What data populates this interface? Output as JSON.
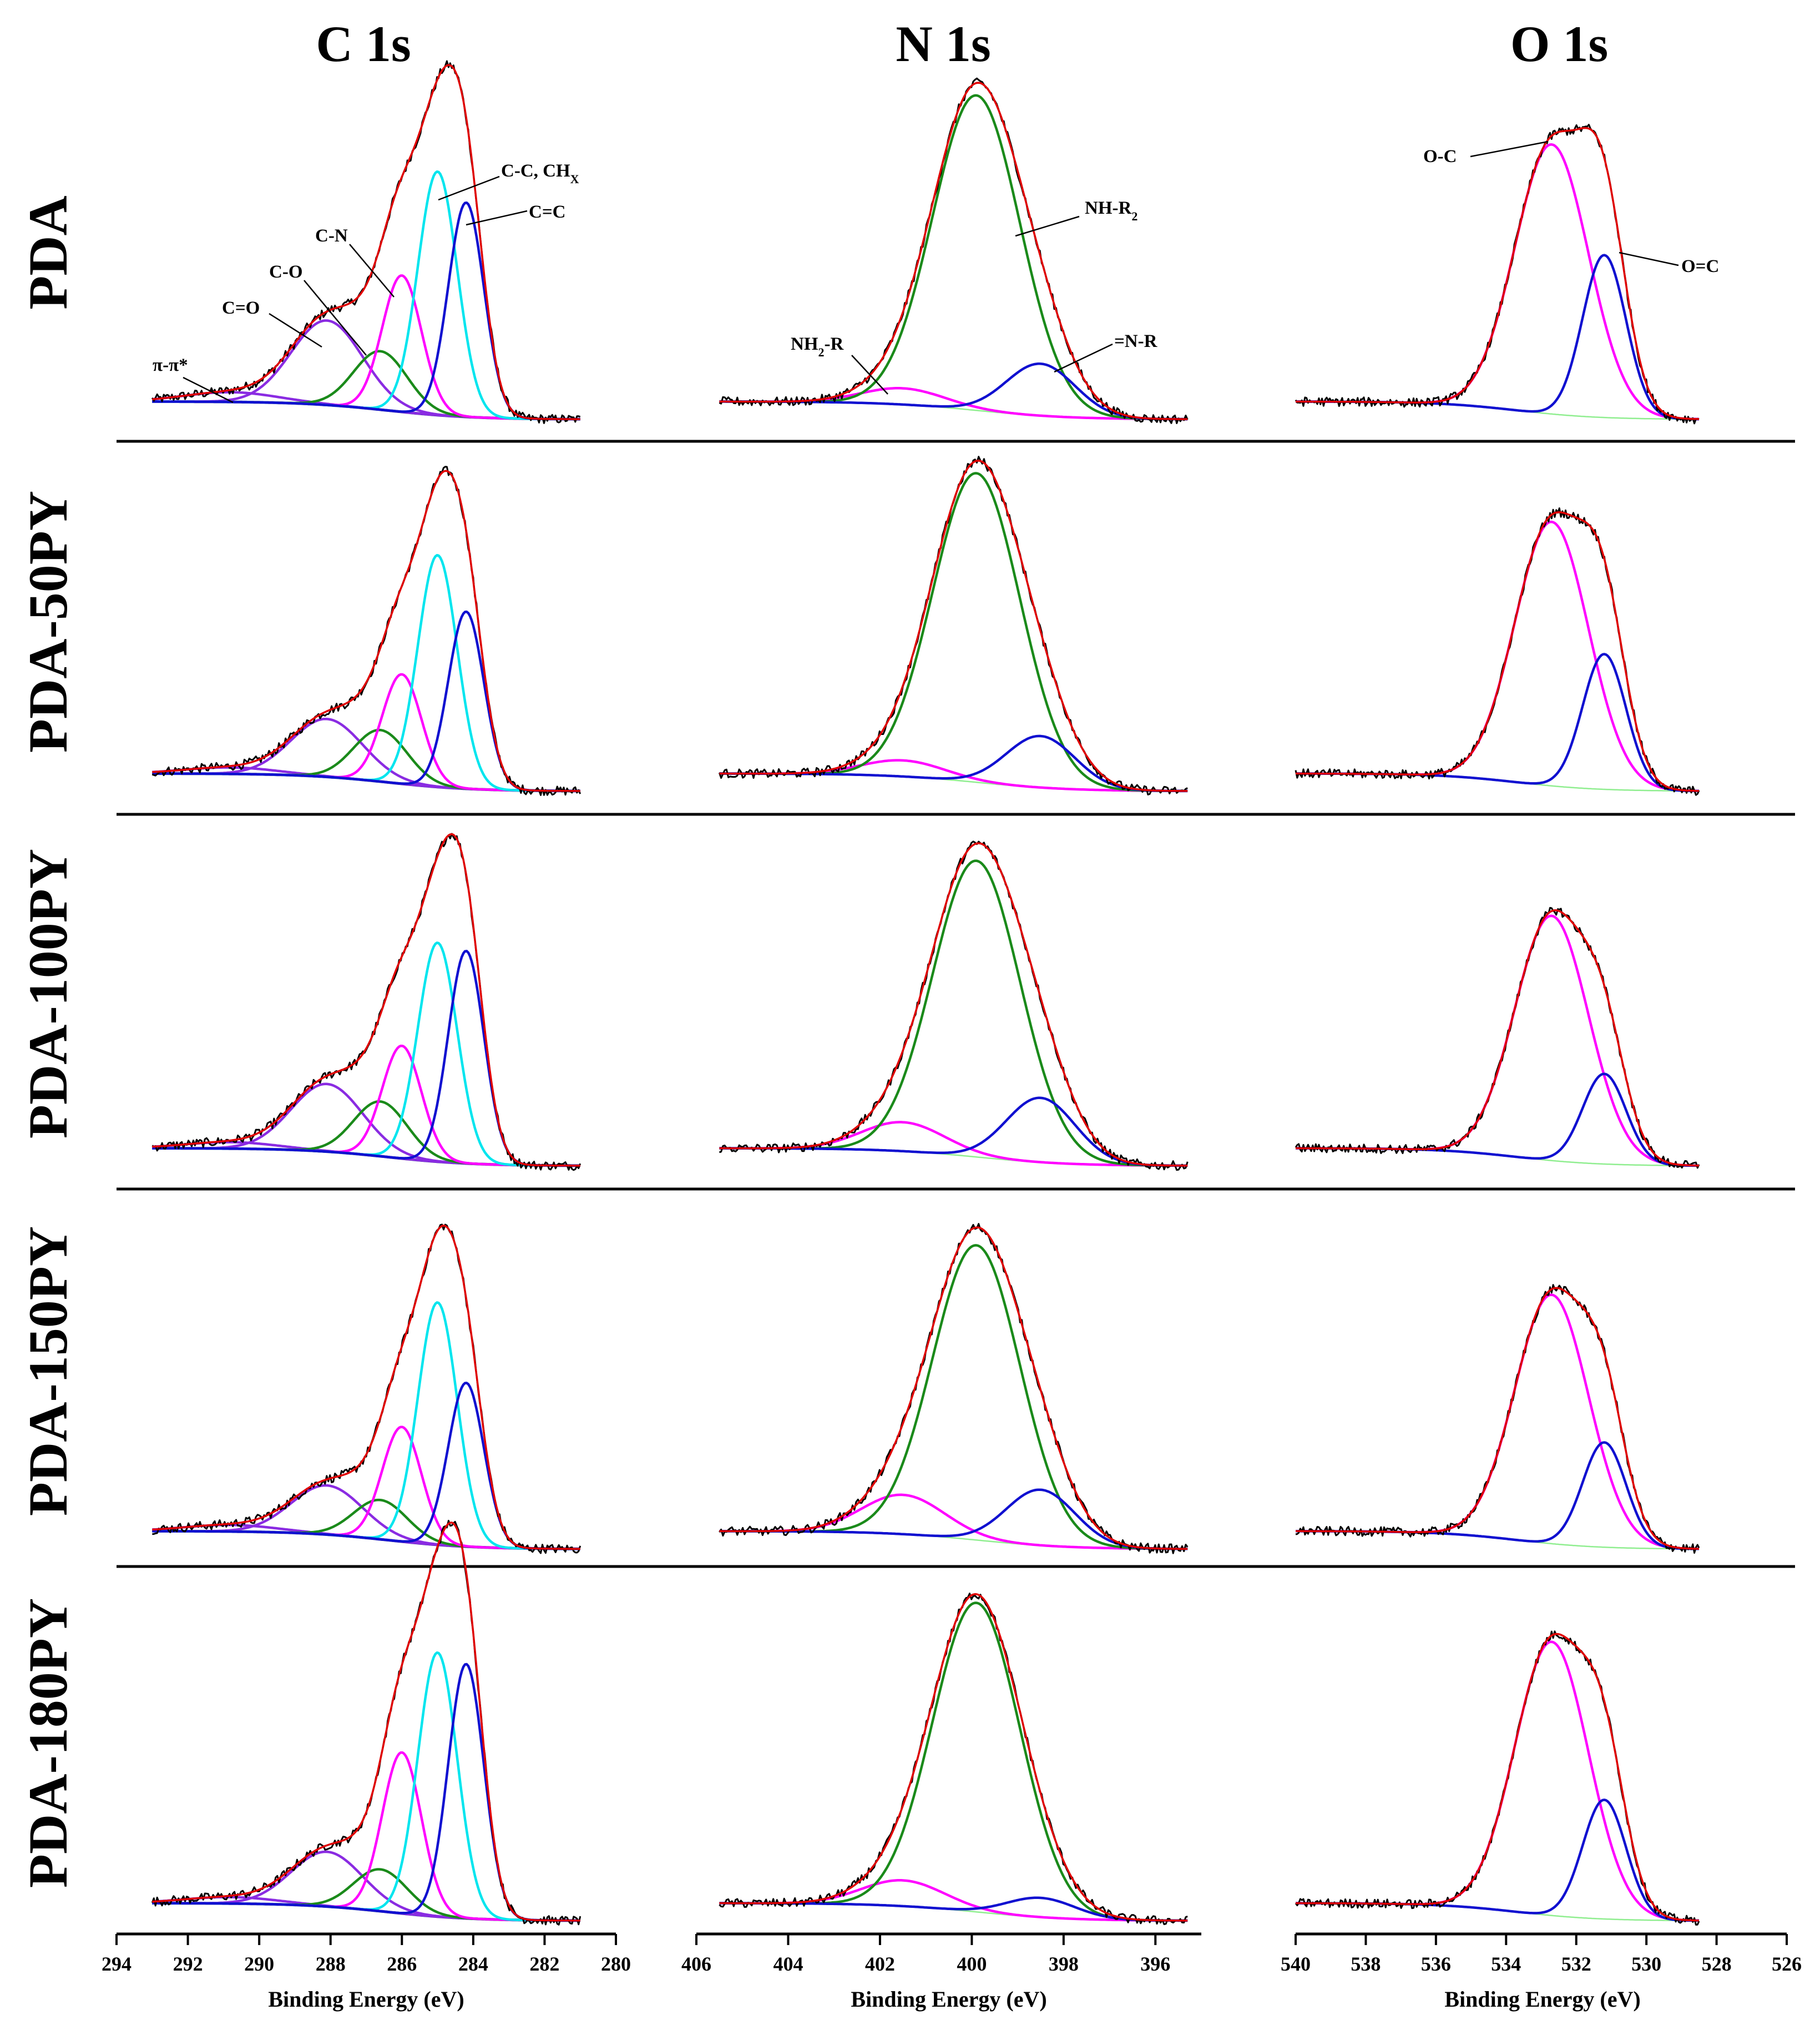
{
  "colors": {
    "raw": "#000000",
    "envelope": "#e00000",
    "background": "#1a237e",
    "magenta": "#ff00ff",
    "green": "#1a8a1a",
    "blue": "#1010d0",
    "cyan": "#00e5ee",
    "purple": "#8a2be2",
    "lightgreen": "#90ee90"
  },
  "chart_data": {
    "type": "line",
    "title_columns": [
      "C 1s",
      "N 1s",
      "O 1s"
    ],
    "row_labels": [
      "PDA",
      "PDA-50PY",
      "PDA-100PY",
      "PDA-150PY",
      "PDA-180PY"
    ],
    "xlabel": "Binding Energy (eV)",
    "panels": [
      {
        "name": "C 1s",
        "xlim": [
          294,
          280
        ],
        "xticks": [
          "294",
          "292",
          "290",
          "288",
          "286",
          "284",
          "282",
          "280"
        ],
        "xtick_values": [
          294,
          292,
          290,
          288,
          286,
          284,
          282,
          280
        ],
        "data_range": [
          293.0,
          281.0
        ],
        "components": [
          {
            "name": "π-π*",
            "center": 290.8,
            "color": "purple"
          },
          {
            "name": "C=O",
            "center": 288.1,
            "color": "purple"
          },
          {
            "name": "C-O",
            "center": 286.6,
            "color": "green"
          },
          {
            "name": "C-N",
            "center": 286.0,
            "color": "magenta"
          },
          {
            "name": "C-C, CHX",
            "center": 285.0,
            "color": "cyan"
          },
          {
            "name": "C=C",
            "center": 284.2,
            "color": "blue"
          }
        ],
        "rows": [
          {
            "amps": [
              0.03,
              0.26,
              0.18,
              0.42,
              0.75,
              0.66
            ]
          },
          {
            "amps": [
              0.02,
              0.18,
              0.16,
              0.34,
              0.72,
              0.55
            ]
          },
          {
            "amps": [
              0.02,
              0.21,
              0.17,
              0.35,
              0.68,
              0.66
            ]
          },
          {
            "amps": [
              0.02,
              0.15,
              0.12,
              0.35,
              0.74,
              0.5
            ]
          },
          {
            "amps": [
              0.02,
              0.17,
              0.13,
              0.5,
              0.82,
              0.79
            ]
          }
        ],
        "annotations": [
          {
            "text": "π-π*",
            "sub": ""
          },
          {
            "text": "C=O",
            "sub": ""
          },
          {
            "text": "C-O",
            "sub": ""
          },
          {
            "text": "C-N",
            "sub": ""
          },
          {
            "text": "C-C, CH",
            "sub": "X"
          },
          {
            "text": "C=C",
            "sub": ""
          }
        ]
      },
      {
        "name": "N 1s",
        "xlim": [
          406,
          395
        ],
        "xticks": [
          "406",
          "404",
          "402",
          "400",
          "398",
          "396"
        ],
        "xtick_values": [
          406,
          404,
          402,
          400,
          398,
          396
        ],
        "data_range": [
          405.5,
          395.3
        ],
        "components": [
          {
            "name": "NH2-R",
            "center": 401.5,
            "color": "magenta"
          },
          {
            "name": "NH-R2",
            "center": 399.9,
            "color": "green"
          },
          {
            "name": "=N-R",
            "center": 398.5,
            "color": "blue"
          }
        ],
        "rows": [
          {
            "amps": [
              0.05,
              0.97,
              0.16
            ]
          },
          {
            "amps": [
              0.05,
              0.96,
              0.16
            ]
          },
          {
            "amps": [
              0.09,
              0.92,
              0.2
            ]
          },
          {
            "amps": [
              0.12,
              0.9,
              0.17
            ]
          },
          {
            "amps": [
              0.08,
              0.96,
              0.06
            ]
          }
        ],
        "annotations": [
          {
            "text": "NH",
            "sub": "2",
            "tail": "-R"
          },
          {
            "text": "NH-R",
            "sub": "2",
            "tail": ""
          },
          {
            "text": "=N-R",
            "sub": "",
            "tail": ""
          }
        ]
      },
      {
        "name": "O 1s",
        "xlim": [
          540,
          526
        ],
        "xticks": [
          "540",
          "538",
          "536",
          "534",
          "532",
          "530",
          "528",
          "526"
        ],
        "xtick_values": [
          540,
          538,
          536,
          534,
          532,
          530,
          528,
          526
        ],
        "data_range": [
          540.0,
          528.5
        ],
        "components": [
          {
            "name": "O-C",
            "center": 532.7,
            "color": "magenta"
          },
          {
            "name": "O=C",
            "center": 531.2,
            "color": "blue"
          }
        ],
        "rows": [
          {
            "amps": [
              0.83,
              0.5
            ]
          },
          {
            "amps": [
              0.82,
              0.42
            ]
          },
          {
            "amps": [
              0.76,
              0.28
            ]
          },
          {
            "amps": [
              0.76,
              0.32
            ]
          },
          {
            "amps": [
              0.85,
              0.37
            ]
          }
        ],
        "annotations": [
          {
            "text": "O-C",
            "sub": ""
          },
          {
            "text": "O=C",
            "sub": ""
          }
        ]
      }
    ]
  }
}
